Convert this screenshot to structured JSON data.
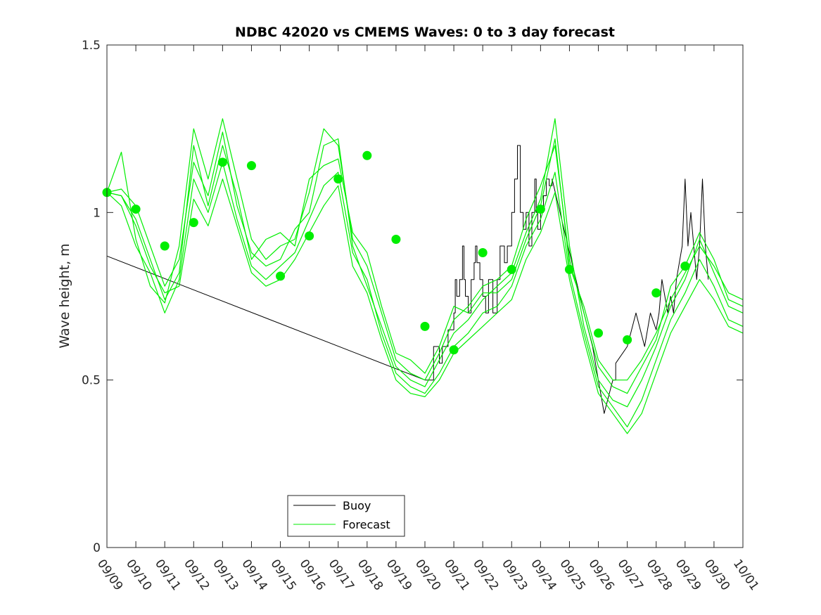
{
  "chart_data": {
    "type": "line",
    "title": "NDBC 42020 vs CMEMS Waves: 0 to 3 day forecast",
    "xlabel": "",
    "ylabel": "Wave height, m",
    "ylim": [
      0,
      1.5
    ],
    "xlim": [
      0,
      22
    ],
    "yticks": [
      0,
      0.5,
      1,
      1.5
    ],
    "ytick_labels": [
      "0",
      "0.5",
      "1",
      "1.5"
    ],
    "xtick_labels": [
      "09/09",
      "09/10",
      "09/11",
      "09/12",
      "09/13",
      "09/14",
      "09/15",
      "09/16",
      "09/17",
      "09/18",
      "09/19",
      "09/20",
      "09/21",
      "09/22",
      "09/23",
      "09/24",
      "09/25",
      "09/26",
      "09/27",
      "09/28",
      "09/29",
      "09/30",
      "10/01"
    ],
    "colors": {
      "buoy": "#000000",
      "forecast": "#00ee00",
      "axes": "#262626"
    },
    "legend": {
      "position": "bottom-center",
      "entries": [
        {
          "label": "Buoy",
          "color": "#000000"
        },
        {
          "label": "Forecast",
          "color": "#00ee00"
        }
      ]
    },
    "series": [
      {
        "name": "Buoy",
        "color": "#000000",
        "x": [
          0,
          11,
          11.3,
          11.3,
          11.5,
          11.5,
          11.6,
          11.6,
          11.8,
          11.8,
          12,
          12,
          12.05,
          12.05,
          12.1,
          12.1,
          12.2,
          12.2,
          12.3,
          12.3,
          12.35,
          12.35,
          12.4,
          12.4,
          12.5,
          12.5,
          12.6,
          12.6,
          12.7,
          12.7,
          12.75,
          12.75,
          12.8,
          12.8,
          12.9,
          12.9,
          13,
          13,
          13.1,
          13.1,
          13.2,
          13.2,
          13.35,
          13.35,
          13.5,
          13.5,
          13.6,
          13.6,
          13.75,
          13.75,
          13.85,
          13.85,
          14,
          14,
          14.1,
          14.1,
          14.2,
          14.2,
          14.3,
          14.3,
          14.4,
          14.4,
          14.5,
          14.5,
          14.6,
          14.6,
          14.7,
          14.7,
          14.8,
          14.8,
          14.85,
          14.85,
          14.9,
          14.9,
          15,
          15,
          15.1,
          15.1,
          15.2,
          15.2,
          15.3,
          15.3,
          15.4,
          15.4,
          16.5,
          16.5,
          16.8,
          16.8,
          17,
          17,
          17.1,
          17.1,
          17.2,
          17.2,
          17.35,
          17.35,
          17.5,
          17.5,
          17.6,
          17.6,
          18,
          18.3,
          18.3,
          18.6,
          18.6,
          18.8,
          18.8,
          19,
          19,
          19.1,
          19.1,
          19.2,
          19.2,
          19.4,
          19.4,
          19.5,
          19.5,
          19.6,
          19.6,
          19.7,
          19.7,
          19.8,
          19.8,
          19.9,
          19.9,
          20,
          20,
          20.1,
          20.1,
          20.2,
          20.2,
          20.3,
          20.3,
          20.4,
          20.4,
          20.5,
          20.5,
          20.6,
          20.6,
          20.7,
          20.7,
          20.8,
          20.8
        ],
        "values": [
          0.87,
          0.5,
          0.5,
          0.6,
          0.6,
          0.55,
          0.55,
          0.6,
          0.6,
          0.65,
          0.65,
          0.7,
          0.7,
          0.8,
          0.8,
          0.75,
          0.75,
          0.8,
          0.8,
          0.9,
          0.9,
          0.8,
          0.8,
          0.75,
          0.75,
          0.7,
          0.7,
          0.8,
          0.8,
          0.85,
          0.85,
          0.9,
          0.9,
          0.85,
          0.85,
          0.8,
          0.8,
          0.75,
          0.75,
          0.7,
          0.7,
          0.8,
          0.8,
          0.7,
          0.7,
          0.8,
          0.8,
          0.9,
          0.9,
          0.85,
          0.85,
          0.9,
          0.9,
          1.0,
          1.0,
          1.1,
          1.1,
          1.2,
          1.2,
          1.0,
          1.0,
          0.95,
          0.95,
          1.0,
          1.0,
          0.9,
          0.9,
          1.0,
          1.0,
          1.1,
          1.1,
          1.0,
          1.0,
          0.95,
          0.95,
          1.0,
          1.0,
          1.05,
          1.05,
          1.1,
          1.1,
          1.08,
          1.08,
          1.1,
          0.7,
          0.7,
          0.6,
          0.6,
          0.5,
          0.5,
          0.45,
          0.45,
          0.4,
          0.4,
          0.45,
          0.45,
          0.5,
          0.5,
          0.5,
          0.55,
          0.6,
          0.7,
          0.7,
          0.6,
          0.6,
          0.7,
          0.7,
          0.65,
          0.65,
          0.7,
          0.7,
          0.8,
          0.8,
          0.7,
          0.7,
          0.75,
          0.75,
          0.7,
          0.7,
          0.8,
          0.8,
          0.85,
          0.85,
          0.9,
          0.9,
          1.1,
          1.1,
          0.9,
          0.9,
          1.0,
          1.0,
          0.9,
          0.9,
          0.8,
          0.8,
          0.9,
          0.9,
          1.1,
          1.1,
          0.9,
          0.9,
          0.8,
          0.8
        ]
      },
      {
        "name": "Forecast run 1",
        "color": "#00ee00",
        "x": [
          0,
          0.5,
          1,
          1.5,
          2,
          2.5,
          3,
          3.5,
          4,
          4.5,
          5,
          5.5,
          6,
          6.5,
          7,
          7.5,
          8,
          8.5,
          9,
          9.5,
          10,
          10.5,
          11,
          11.5,
          12,
          12.5,
          13,
          13.5,
          14,
          14.5,
          15,
          15.5,
          16,
          16.5,
          17,
          17.5,
          18,
          18.5,
          19,
          19.5,
          20,
          20.5,
          21,
          21.5,
          22
        ],
        "values": [
          1.06,
          1.05,
          0.98,
          0.86,
          0.74,
          0.82,
          1.2,
          1.02,
          1.2,
          1.05,
          0.86,
          0.92,
          0.94,
          0.9,
          1.1,
          1.14,
          1.16,
          0.94,
          0.88,
          0.72,
          0.58,
          0.56,
          0.52,
          0.6,
          0.72,
          0.7,
          0.76,
          0.76,
          0.8,
          0.92,
          1.02,
          1.22,
          0.84,
          0.72,
          0.56,
          0.5,
          0.5,
          0.56,
          0.64,
          0.74,
          0.82,
          0.9,
          0.84,
          0.76,
          0.74
        ]
      },
      {
        "name": "Forecast run 2",
        "color": "#00ee00",
        "x": [
          0,
          0.5,
          1,
          1.5,
          2,
          2.5,
          3,
          3.5,
          4,
          4.5,
          5,
          5.5,
          6,
          6.5,
          7,
          7.5,
          8,
          8.5,
          9,
          9.5,
          10,
          10.5,
          11,
          11.5,
          12,
          12.5,
          13,
          13.5,
          14,
          14.5,
          15,
          15.5,
          16,
          16.5,
          17,
          17.5,
          18,
          18.5,
          19,
          19.5,
          20,
          20.5,
          21,
          21.5,
          22
        ],
        "values": [
          1.06,
          1.18,
          0.92,
          0.78,
          0.73,
          0.9,
          1.25,
          1.1,
          1.28,
          1.1,
          0.92,
          0.86,
          0.9,
          0.92,
          1.06,
          1.25,
          1.2,
          0.92,
          0.84,
          0.7,
          0.56,
          0.52,
          0.5,
          0.58,
          0.68,
          0.72,
          0.78,
          0.8,
          0.84,
          0.98,
          1.08,
          1.2,
          0.86,
          0.7,
          0.54,
          0.48,
          0.46,
          0.54,
          0.62,
          0.78,
          0.84,
          0.94,
          0.86,
          0.74,
          0.72
        ]
      },
      {
        "name": "Forecast run 3",
        "color": "#00ee00",
        "x": [
          0,
          0.5,
          1,
          1.5,
          2,
          2.5,
          3,
          3.5,
          4,
          4.5,
          5,
          5.5,
          6,
          6.5,
          7,
          7.5,
          8,
          8.5,
          9,
          9.5,
          10,
          10.5,
          11,
          11.5,
          12,
          12.5,
          13,
          13.5,
          14,
          14.5,
          15,
          15.5,
          16,
          16.5,
          17,
          17.5,
          18,
          18.5,
          19,
          19.5,
          20,
          20.5,
          21,
          21.5,
          22
        ],
        "values": [
          1.06,
          1.07,
          1.02,
          0.9,
          0.78,
          0.86,
          1.15,
          1.05,
          1.24,
          1.02,
          0.88,
          0.84,
          0.86,
          0.95,
          1.0,
          1.2,
          1.22,
          0.9,
          0.78,
          0.66,
          0.54,
          0.5,
          0.48,
          0.56,
          0.64,
          0.68,
          0.74,
          0.78,
          0.82,
          0.94,
          1.04,
          1.28,
          0.9,
          0.66,
          0.5,
          0.44,
          0.42,
          0.5,
          0.6,
          0.72,
          0.8,
          0.92,
          0.82,
          0.72,
          0.7
        ]
      },
      {
        "name": "Forecast run 4",
        "color": "#00ee00",
        "x": [
          0,
          0.5,
          1,
          1.5,
          2,
          2.5,
          3,
          3.5,
          4,
          4.5,
          5,
          5.5,
          6,
          6.5,
          7,
          7.5,
          8,
          8.5,
          9,
          9.5,
          10,
          10.5,
          11,
          11.5,
          12,
          12.5,
          13,
          13.5,
          14,
          14.5,
          15,
          15.5,
          16,
          16.5,
          17,
          17.5,
          18,
          18.5,
          19,
          19.5,
          20,
          20.5,
          21,
          21.5,
          22
        ],
        "values": [
          1.06,
          1.02,
          0.9,
          0.82,
          0.7,
          0.8,
          1.1,
          1.0,
          1.15,
          0.98,
          0.84,
          0.8,
          0.84,
          0.88,
          0.98,
          1.08,
          1.12,
          0.88,
          0.8,
          0.64,
          0.52,
          0.48,
          0.46,
          0.52,
          0.6,
          0.64,
          0.7,
          0.72,
          0.78,
          0.9,
          0.98,
          1.12,
          0.82,
          0.64,
          0.48,
          0.42,
          0.36,
          0.44,
          0.56,
          0.68,
          0.76,
          0.86,
          0.78,
          0.68,
          0.66
        ]
      },
      {
        "name": "Forecast run 5",
        "color": "#00ee00",
        "x": [
          0,
          0.5,
          1,
          1.5,
          2,
          2.5,
          3,
          3.5,
          4,
          4.5,
          5,
          5.5,
          6,
          6.5,
          7,
          7.5,
          8,
          8.5,
          9,
          9.5,
          10,
          10.5,
          11,
          11.5,
          12,
          12.5,
          13,
          13.5,
          14,
          14.5,
          15,
          15.5,
          16,
          16.5,
          17,
          17.5,
          18,
          18.5,
          19,
          19.5,
          20,
          20.5,
          21,
          21.5,
          22
        ],
        "values": [
          1.06,
          1.05,
          0.96,
          0.84,
          0.76,
          0.78,
          1.04,
          0.96,
          1.1,
          0.96,
          0.82,
          0.78,
          0.8,
          0.86,
          0.94,
          1.02,
          1.08,
          0.84,
          0.76,
          0.62,
          0.5,
          0.46,
          0.45,
          0.5,
          0.58,
          0.62,
          0.66,
          0.7,
          0.74,
          0.86,
          0.94,
          1.06,
          0.8,
          0.62,
          0.46,
          0.4,
          0.34,
          0.4,
          0.52,
          0.64,
          0.72,
          0.8,
          0.74,
          0.66,
          0.64
        ]
      }
    ],
    "markers": {
      "name": "Forecast 0-day",
      "color": "#00ee00",
      "x": [
        0,
        1,
        2,
        3,
        4,
        5,
        6,
        7,
        8,
        9,
        10,
        11,
        12,
        13,
        14,
        15,
        16,
        17,
        18,
        19,
        20
      ],
      "values": [
        1.06,
        1.01,
        0.9,
        0.97,
        1.15,
        1.14,
        0.81,
        0.93,
        1.1,
        1.17,
        0.92,
        0.66,
        0.59,
        0.88,
        0.83,
        1.01,
        0.83,
        0.64,
        0.62,
        0.76,
        0.84
      ]
    }
  }
}
